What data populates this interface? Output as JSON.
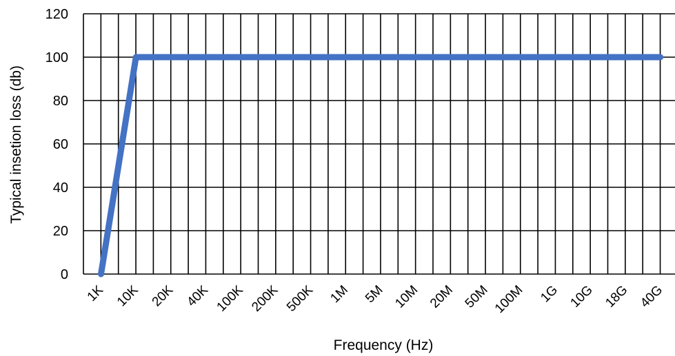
{
  "chart_data": {
    "type": "line",
    "title": "",
    "xlabel": "Frequency (Hz)",
    "ylabel": "Typical insetion loss (db)",
    "categories": [
      "1K",
      "10K",
      "20K",
      "40K",
      "100K",
      "200K",
      "500K",
      "1M",
      "5M",
      "10M",
      "20M",
      "50M",
      "100M",
      "1G",
      "10G",
      "18G",
      "40G"
    ],
    "series": [
      {
        "values": [
          0,
          100,
          100,
          100,
          100,
          100,
          100,
          100,
          100,
          100,
          100,
          100,
          100,
          100,
          100,
          100,
          100
        ],
        "color": "#4472C4"
      }
    ],
    "ylim": [
      0,
      120
    ],
    "yticks": [
      0,
      20,
      40,
      60,
      80,
      100,
      120
    ],
    "grid": true,
    "legend": "none"
  }
}
